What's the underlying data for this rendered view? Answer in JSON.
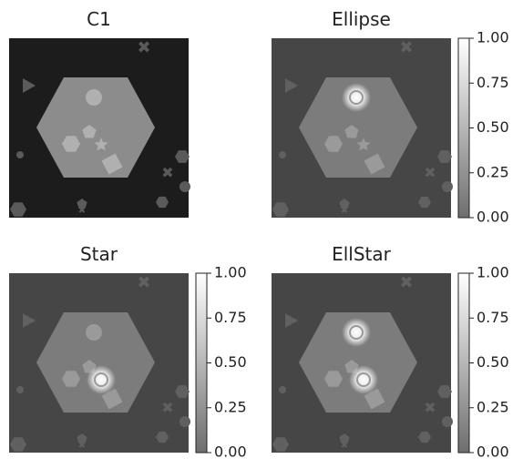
{
  "panels": [
    {
      "title": "C1"
    },
    {
      "title": "Ellipse",
      "colorbar": {
        "lim": [
          0,
          1
        ],
        "ticks": [
          {
            "value": 0,
            "label": "0.00"
          },
          {
            "value": 0.25,
            "label": "0.25"
          },
          {
            "value": 0.5,
            "label": "0.50"
          },
          {
            "value": 0.75,
            "label": "0.75"
          },
          {
            "value": 1,
            "label": "1.00"
          }
        ]
      }
    },
    {
      "title": "Star",
      "colorbar": {
        "lim": [
          0,
          1
        ],
        "ticks": [
          {
            "value": 0,
            "label": "0.00"
          },
          {
            "value": 0.25,
            "label": "0.25"
          },
          {
            "value": 0.5,
            "label": "0.50"
          },
          {
            "value": 0.75,
            "label": "0.75"
          },
          {
            "value": 1,
            "label": "1.00"
          }
        ]
      }
    },
    {
      "title": "EllStar",
      "colorbar": {
        "lim": [
          0,
          1
        ],
        "ticks": [
          {
            "value": 0,
            "label": "0.00"
          },
          {
            "value": 0.25,
            "label": "0.25"
          },
          {
            "value": 0.5,
            "label": "0.50"
          },
          {
            "value": 0.75,
            "label": "0.75"
          },
          {
            "value": 1,
            "label": "1.00"
          }
        ]
      }
    }
  ]
}
